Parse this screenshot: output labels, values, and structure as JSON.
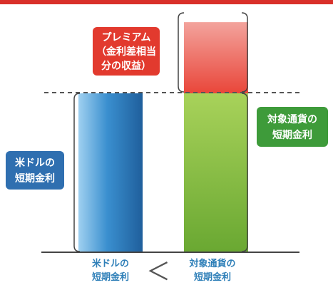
{
  "chart_data": {
    "type": "bar",
    "categories": [
      "米ドルの短期金利",
      "対象通貨の短期金利"
    ],
    "series": [
      {
        "values": [
          100,
          100
        ]
      },
      {
        "values": [
          0,
          45
        ]
      }
    ],
    "stacked": true,
    "colors": {
      "usd": "#3a8fcf",
      "target": "#7cc043",
      "premium": "#e9463a",
      "label_usd": "#2f6fb0",
      "label_premium": "#e23a2e",
      "label_target": "#3e9b3a",
      "axis_text": "#2e7fb8"
    },
    "annotations": {
      "premium": [
        "プレミアム",
        "（金利差相当",
        "分の収益）"
      ],
      "target": [
        "対象通貨の",
        "短期金利"
      ],
      "usd": [
        "米ドルの",
        "短期金利"
      ]
    },
    "x_labels": {
      "usd": [
        "米ドルの",
        "短期金利"
      ],
      "target": [
        "対象通貨の",
        "短期金利"
      ],
      "compare": "＜"
    }
  }
}
